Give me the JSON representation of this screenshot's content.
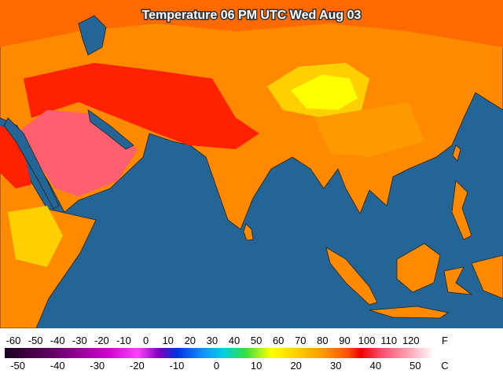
{
  "title": "Temperature 06 PM UTC Wed Aug 03",
  "legend": {
    "fahrenheit_unit": "F",
    "fahrenheit_ticks": [
      -60,
      -50,
      -40,
      -30,
      -20,
      -10,
      0,
      10,
      20,
      30,
      40,
      50,
      60,
      70,
      80,
      90,
      100,
      110,
      120
    ],
    "celsius_unit": "C",
    "celsius_ticks": [
      -50,
      -40,
      -30,
      -20,
      -10,
      0,
      10,
      20,
      30,
      40,
      50
    ]
  }
}
